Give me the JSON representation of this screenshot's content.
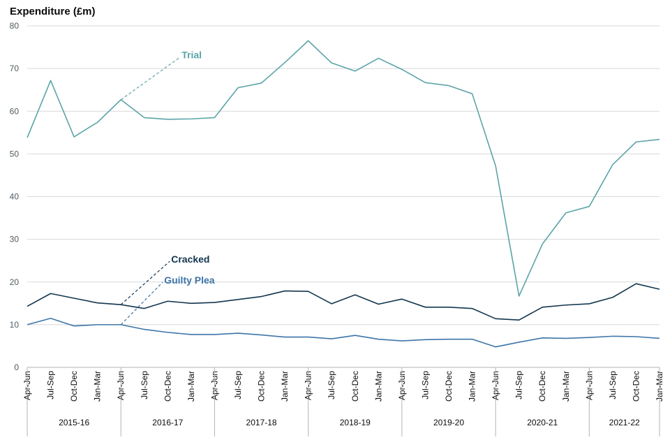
{
  "chart_data": {
    "type": "line",
    "ylabel": "Expenditure (£m)",
    "ylim": [
      0,
      80
    ],
    "yticks": [
      0,
      10,
      20,
      30,
      40,
      50,
      60,
      70,
      80
    ],
    "grid": true,
    "x": [
      "Apr-Jun",
      "Jul-Sep",
      "Oct-Dec",
      "Jan-Mar",
      "Apr-Jun",
      "Jul-Sep",
      "Oct-Dec",
      "Jan-Mar",
      "Apr-Jun",
      "Jul-Sep",
      "Oct-Dec",
      "Jan-Mar",
      "Apr-Jun",
      "Jul-Sep",
      "Oct-Dec",
      "Jan-Mar",
      "Apr-Jun",
      "Jul-Sep",
      "Oct-Dec",
      "Jan-Mar",
      "Apr-Jun",
      "Jul-Sep",
      "Oct-Dec",
      "Jan-Mar",
      "Apr-Jun",
      "Jul-Sep",
      "Oct-Dec",
      "Jan-Mar"
    ],
    "years": [
      "2015-16",
      "2016-17",
      "2017-18",
      "2018-19",
      "2019-20",
      "2020-21",
      "2021-22"
    ],
    "series": [
      {
        "name": "Trial",
        "color": "#5ba4a8",
        "label_anchor_index": 4,
        "values": [
          53.8,
          67.2,
          54.0,
          57.4,
          62.7,
          58.5,
          58.1,
          58.2,
          58.5,
          65.5,
          66.6,
          71.4,
          76.5,
          71.3,
          69.4,
          72.4,
          69.8,
          66.7,
          66.0,
          64.1,
          47.2,
          16.7,
          28.9,
          36.2,
          37.7,
          47.5,
          52.8,
          53.4
        ]
      },
      {
        "name": "Cracked",
        "color": "#12364f",
        "label_anchor_index": 4,
        "values": [
          14.3,
          17.3,
          16.2,
          15.1,
          14.7,
          13.8,
          15.5,
          15.0,
          15.2,
          15.9,
          16.6,
          17.9,
          17.8,
          14.9,
          17.0,
          14.8,
          16.0,
          14.1,
          14.1,
          13.8,
          11.4,
          11.1,
          14.1,
          14.6,
          14.9,
          16.4,
          19.6,
          18.3
        ]
      },
      {
        "name": "Guilty Plea",
        "color": "#3d75a8",
        "label_anchor_index": 4,
        "values": [
          10.0,
          11.5,
          9.7,
          10.0,
          10.0,
          8.9,
          8.2,
          7.7,
          7.7,
          8.0,
          7.6,
          7.1,
          7.1,
          6.7,
          7.5,
          6.6,
          6.2,
          6.5,
          6.6,
          6.6,
          4.8,
          5.9,
          6.9,
          6.8,
          7.0,
          7.3,
          7.2,
          6.8
        ]
      }
    ]
  }
}
